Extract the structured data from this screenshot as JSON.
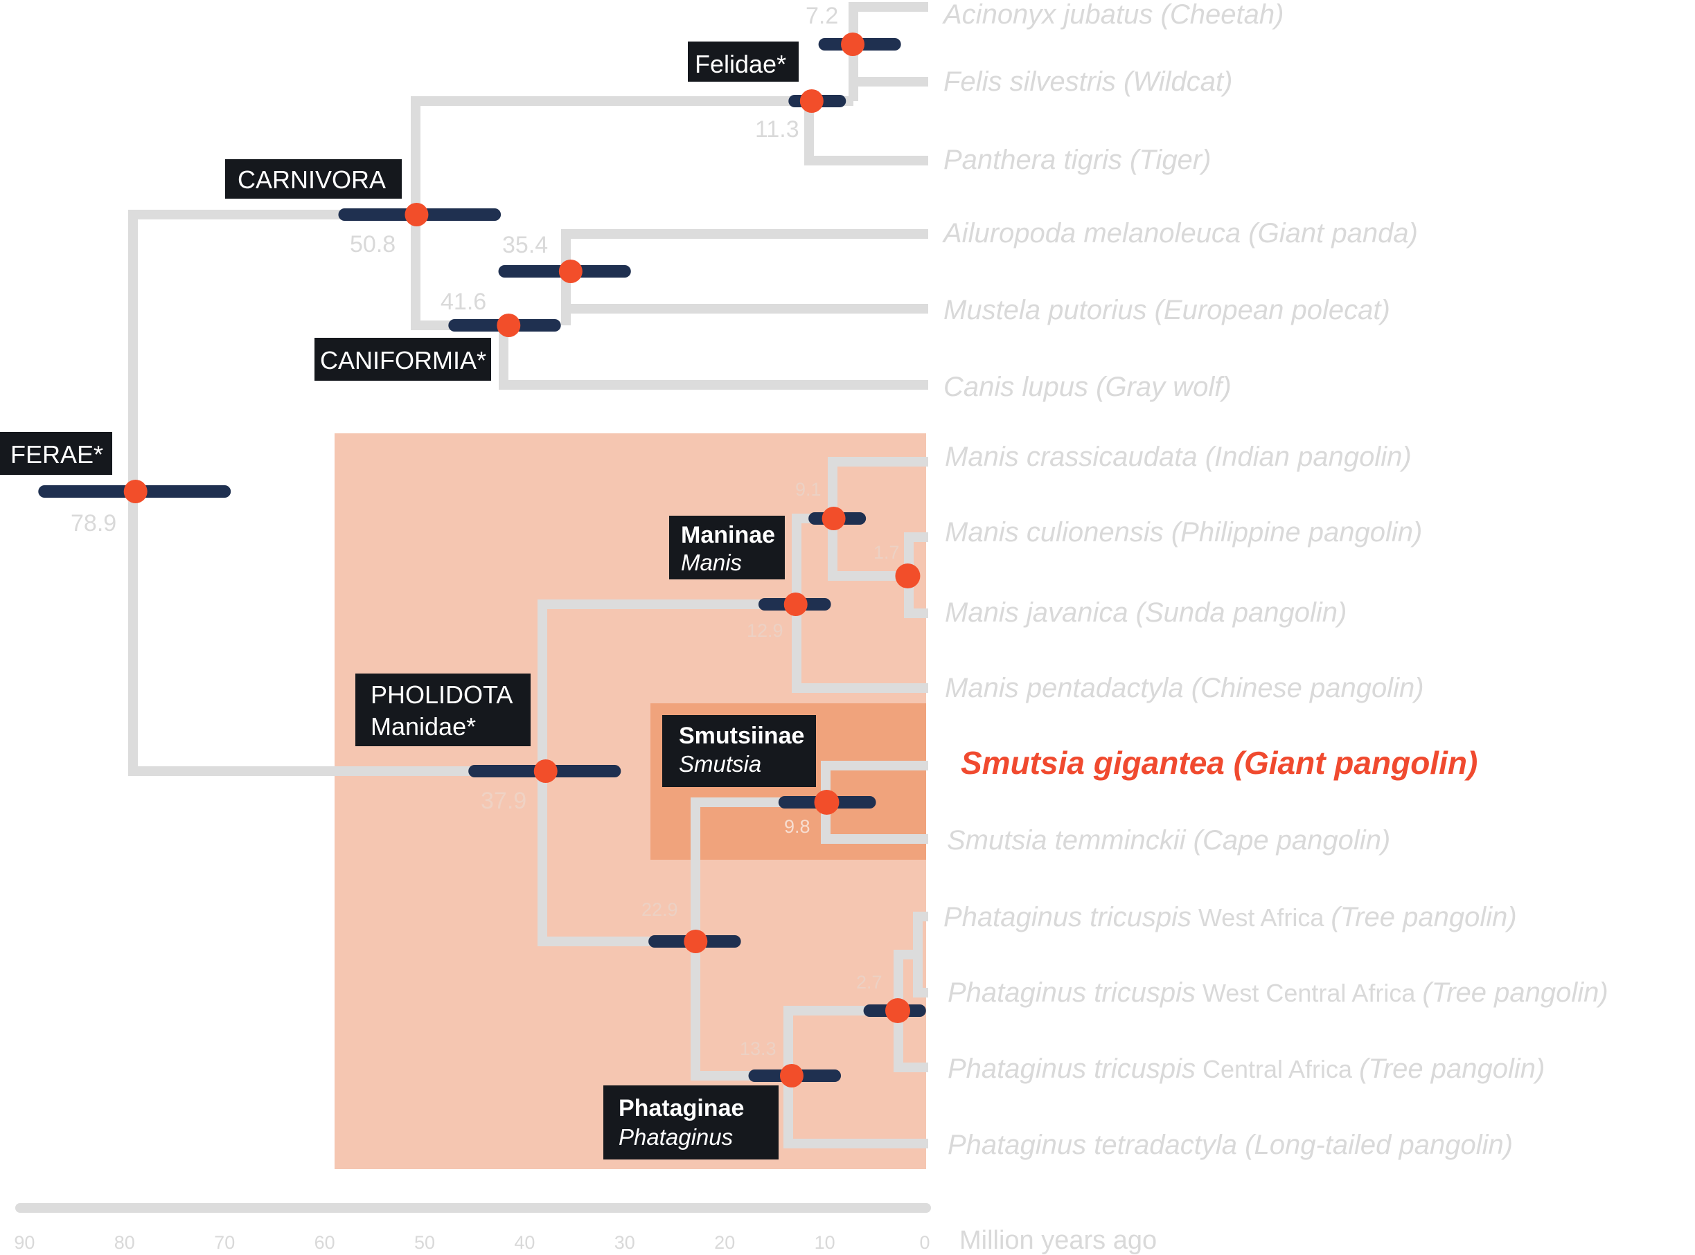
{
  "colors": {
    "branch": "#dcdcdc",
    "confidence_bar": "#1f3050",
    "node": "#f24e2a",
    "pholidota_highlight": "#f5c6b1",
    "smutsiinae_highlight": "#f0a37c",
    "label_box": "#15181d",
    "highlight_text": "#f04a2f"
  },
  "tips": [
    {
      "id": "cheetah",
      "main": "Acinonyx jubatus (Cheetah)"
    },
    {
      "id": "wildcat",
      "main": "Felis silvestris (Wildcat)"
    },
    {
      "id": "tiger",
      "main": "Panthera tigris (Tiger)"
    },
    {
      "id": "panda",
      "main": "Ailuropoda melanoleuca (Giant panda)"
    },
    {
      "id": "polecat",
      "main": "Mustela putorius (European polecat)"
    },
    {
      "id": "wolf",
      "main": "Canis lupus (Gray wolf)"
    },
    {
      "id": "indian",
      "main": "Manis crassicaudata (Indian pangolin)"
    },
    {
      "id": "philippine",
      "main": "Manis culionensis (Philippine pangolin)"
    },
    {
      "id": "sunda",
      "main": "Manis javanica (Sunda pangolin)"
    },
    {
      "id": "chinese",
      "main": "Manis pentadactyla (Chinese pangolin)"
    },
    {
      "id": "giant",
      "main": "Smutsia gigantea (Giant pangolin)",
      "highlight": true
    },
    {
      "id": "cape",
      "main": "Smutsia temminckii (Cape pangolin)"
    },
    {
      "id": "tree_wa",
      "main": "Phataginus tricuspis",
      "region": " West Africa ",
      "tail": "(Tree pangolin)"
    },
    {
      "id": "tree_wca",
      "main": "Phataginus tricuspis",
      "region": " West Central Africa ",
      "tail": "(Tree pangolin)"
    },
    {
      "id": "tree_ca",
      "main": "Phataginus tricuspis",
      "region": " Central Africa ",
      "tail": "(Tree pangolin)"
    },
    {
      "id": "longtailed",
      "main": "Phataginus tetradactyla (Long-tailed pangolin)"
    }
  ],
  "nodes": [
    {
      "id": "felis_group",
      "age": 7.2,
      "ci": [
        10,
        3
      ],
      "label": "7.2"
    },
    {
      "id": "felidae",
      "age": 11.3,
      "ci": [
        13,
        8.5
      ],
      "label": "11.3"
    },
    {
      "id": "carnivora",
      "age": 50.8,
      "ci": [
        58,
        43
      ],
      "label": "50.8"
    },
    {
      "id": "panda_polecat",
      "age": 35.4,
      "ci": [
        42,
        30
      ],
      "label": "35.4"
    },
    {
      "id": "caniformia",
      "age": 41.6,
      "ci": [
        47,
        37
      ],
      "label": "41.6"
    },
    {
      "id": "ferae",
      "age": 78.9,
      "ci": [
        88,
        70
      ],
      "label": "78.9"
    },
    {
      "id": "manis_inner",
      "age": 9.1,
      "ci": [
        11,
        6.5
      ],
      "label": "9.1"
    },
    {
      "id": "philippine_sunda",
      "age": 1.7,
      "ci": [
        2,
        1.5
      ],
      "label": "1.7"
    },
    {
      "id": "maninae",
      "age": 12.9,
      "ci": [
        16,
        10
      ],
      "label": "12.9"
    },
    {
      "id": "smutsiinae",
      "age": 9.8,
      "ci": [
        14,
        5.5
      ],
      "label": "9.8"
    },
    {
      "id": "pholidota",
      "age": 37.9,
      "ci": [
        45,
        31
      ],
      "label": "37.9"
    },
    {
      "id": "afr_pangolins",
      "age": 22.9,
      "ci": [
        27,
        19
      ],
      "label": "22.9"
    },
    {
      "id": "tree_group",
      "age": 2.7,
      "ci": [
        5.5,
        0.5
      ],
      "label": "2.7"
    },
    {
      "id": "phataginae",
      "age": 13.3,
      "ci": [
        17,
        9
      ],
      "label": "13.3"
    }
  ],
  "clade_labels": [
    {
      "id": "felidae",
      "text": "Felidae*"
    },
    {
      "id": "carnivora",
      "text": "CARNIVORA"
    },
    {
      "id": "caniformia",
      "text": "CANIFORMIA*"
    },
    {
      "id": "ferae",
      "text": "FERAE*"
    },
    {
      "id": "maninae",
      "line1": "Maninae",
      "line2": "Manis"
    },
    {
      "id": "pholidota",
      "line1": "PHOLIDOTA",
      "line2": "Manidae*"
    },
    {
      "id": "smutsiinae",
      "line1": "Smutsiinae",
      "line2": "Smutsia"
    },
    {
      "id": "phataginae",
      "line1": "Phataginae",
      "line2": "Phataginus"
    }
  ],
  "axis": {
    "title": "Million years ago",
    "ticks": [
      "90",
      "80",
      "70",
      "60",
      "50",
      "40",
      "30",
      "20",
      "10",
      "0"
    ]
  }
}
